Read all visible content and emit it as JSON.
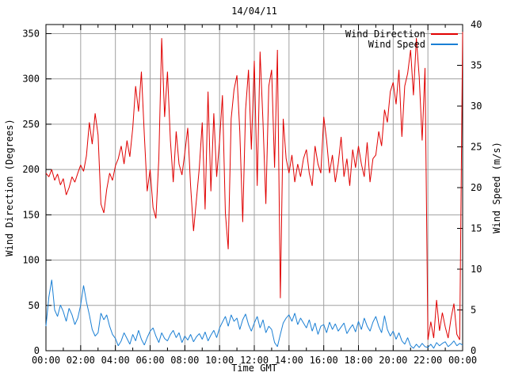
{
  "chart_data": {
    "type": "line",
    "title": "14/04/11",
    "xlabel": "Time GMT",
    "ylabel_left": "Wind Direction (Degrees)",
    "ylabel_right": "Wind Speed (m/s)",
    "grid": true,
    "grid_color": "#a0a0a0",
    "border_color": "#000000",
    "x_range_hours": [
      0,
      24
    ],
    "x_tick_labels": [
      "00:00",
      "02:00",
      "04:00",
      "06:00",
      "08:00",
      "10:00",
      "12:00",
      "14:00",
      "16:00",
      "18:00",
      "20:00",
      "22:00",
      "00:00"
    ],
    "x_minor_tick_hours": 1,
    "ylim_left": [
      0,
      360
    ],
    "yticks_left": [
      0,
      50,
      100,
      150,
      200,
      250,
      300,
      350
    ],
    "ylim_right": [
      0,
      40
    ],
    "yticks_right": [
      0,
      5,
      10,
      15,
      20,
      25,
      30,
      35,
      40
    ],
    "legend_position": "top-right-inside",
    "sample_step_minutes": 10,
    "series": [
      {
        "name": "Wind Direction",
        "axis": "left",
        "units": "degrees",
        "color": "#e00000",
        "values": [
          196,
          192,
          200,
          188,
          195,
          183,
          190,
          172,
          180,
          192,
          186,
          196,
          205,
          198,
          215,
          252,
          228,
          262,
          238,
          162,
          152,
          178,
          196,
          188,
          204,
          212,
          226,
          206,
          232,
          214,
          246,
          292,
          264,
          308,
          238,
          176,
          200,
          158,
          146,
          212,
          345,
          258,
          308,
          232,
          186,
          242,
          206,
          194,
          218,
          246,
          182,
          132,
          166,
          202,
          252,
          156,
          286,
          176,
          262,
          192,
          232,
          282,
          152,
          112,
          256,
          288,
          304,
          242,
          142,
          266,
          310,
          222,
          320,
          182,
          330,
          252,
          162,
          292,
          310,
          202,
          332,
          58,
          256,
          212,
          196,
          216,
          186,
          206,
          192,
          212,
          222,
          196,
          182,
          226,
          206,
          196,
          258,
          232,
          196,
          216,
          186,
          206,
          236,
          192,
          212,
          182,
          222,
          202,
          226,
          206,
          192,
          230,
          186,
          212,
          216,
          242,
          226,
          266,
          252,
          286,
          296,
          272,
          310,
          236,
          292,
          306,
          332,
          282,
          345,
          302,
          232,
          312,
          12,
          32,
          14,
          56,
          22,
          42,
          26,
          14,
          36,
          52,
          18,
          12,
          352
        ]
      },
      {
        "name": "Wind Speed",
        "axis": "right",
        "units": "m/s",
        "color": "#1a7fd4",
        "values": [
          3.0,
          6.6,
          8.7,
          5.0,
          4.2,
          5.6,
          4.8,
          3.6,
          5.2,
          4.4,
          3.2,
          4.0,
          5.6,
          8.0,
          6.0,
          4.4,
          2.6,
          1.8,
          2.2,
          4.6,
          3.8,
          4.4,
          3.0,
          2.0,
          1.5,
          0.6,
          1.2,
          2.2,
          1.5,
          0.8,
          2.0,
          1.2,
          2.5,
          1.4,
          0.7,
          1.6,
          2.4,
          2.8,
          1.8,
          1.0,
          2.2,
          1.5,
          1.2,
          2.0,
          2.5,
          1.6,
          2.2,
          1.0,
          1.8,
          1.3,
          2.0,
          1.1,
          1.7,
          2.1,
          1.4,
          2.3,
          1.2,
          1.9,
          2.5,
          1.6,
          2.8,
          3.5,
          4.2,
          3.0,
          4.4,
          3.6,
          4.0,
          2.6,
          3.8,
          4.5,
          3.2,
          2.4,
          3.4,
          4.2,
          2.8,
          3.8,
          2.2,
          3.0,
          2.6,
          1.0,
          0.5,
          2.0,
          3.4,
          4.0,
          4.4,
          3.6,
          4.6,
          3.2,
          4.0,
          3.4,
          2.8,
          3.8,
          2.4,
          3.4,
          2.0,
          3.0,
          3.2,
          2.2,
          3.5,
          2.6,
          3.3,
          2.4,
          2.9,
          3.4,
          2.1,
          2.7,
          3.2,
          2.3,
          3.6,
          2.6,
          4.0,
          3.0,
          2.4,
          3.5,
          4.2,
          3.0,
          2.2,
          4.3,
          2.6,
          1.8,
          2.4,
          1.4,
          2.2,
          1.2,
          0.8,
          1.6,
          0.6,
          0.3,
          0.8,
          0.4,
          0.9,
          0.5,
          0.4,
          0.8,
          0.3,
          1.0,
          0.6,
          0.9,
          1.1,
          0.5,
          0.8,
          1.2,
          0.6,
          0.9,
          0.7
        ]
      }
    ]
  }
}
